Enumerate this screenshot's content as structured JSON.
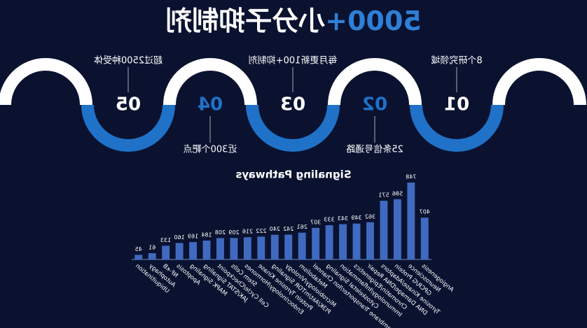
{
  "header": {
    "title_number": "5000+",
    "title_text": "小分子抑制剂"
  },
  "steps": [
    {
      "number": "01",
      "label": "8个研究领域"
    },
    {
      "number": "02",
      "label": "25条信号通路"
    },
    {
      "number": "03",
      "label": "每月更新100+抑制剂"
    },
    {
      "number": "04",
      "label": "近300个靶点"
    },
    {
      "number": "05",
      "label": "超过2500种受体"
    }
  ],
  "chart_data": {
    "type": "bar",
    "title": "Signaling Pathways",
    "color": "#3f6ac0",
    "categories": [
      "Angiogenesis",
      "Neuroscience",
      "GPCR/G Protein",
      "Tyrosine Kinase/Adaptors",
      "DNA Damage/DNA Repair",
      "Chromatin/Epigenetics",
      "Immunology/Inflammation",
      "Cytoskeletal Signaling",
      "Membrane Transporter/Ion Channel",
      "Metabolism",
      "Microbiology/Virology",
      "PI3K/Akt/mTOR Signaling",
      "Protein Tyrosine Kinase",
      "Endocrinology/Hormones",
      "Stem Cells",
      "Cell Cycle/Checkpoint",
      "JAK/STAT Signaling",
      "MAPK Signaling",
      "Apoptosis",
      "NF-κB",
      "Autophagy",
      "Ubiquitination"
    ],
    "values": [
      407,
      748,
      586,
      571,
      362,
      349,
      343,
      333,
      307,
      261,
      242,
      240,
      222,
      216,
      209,
      208,
      184,
      169,
      160,
      133,
      61,
      45
    ]
  }
}
